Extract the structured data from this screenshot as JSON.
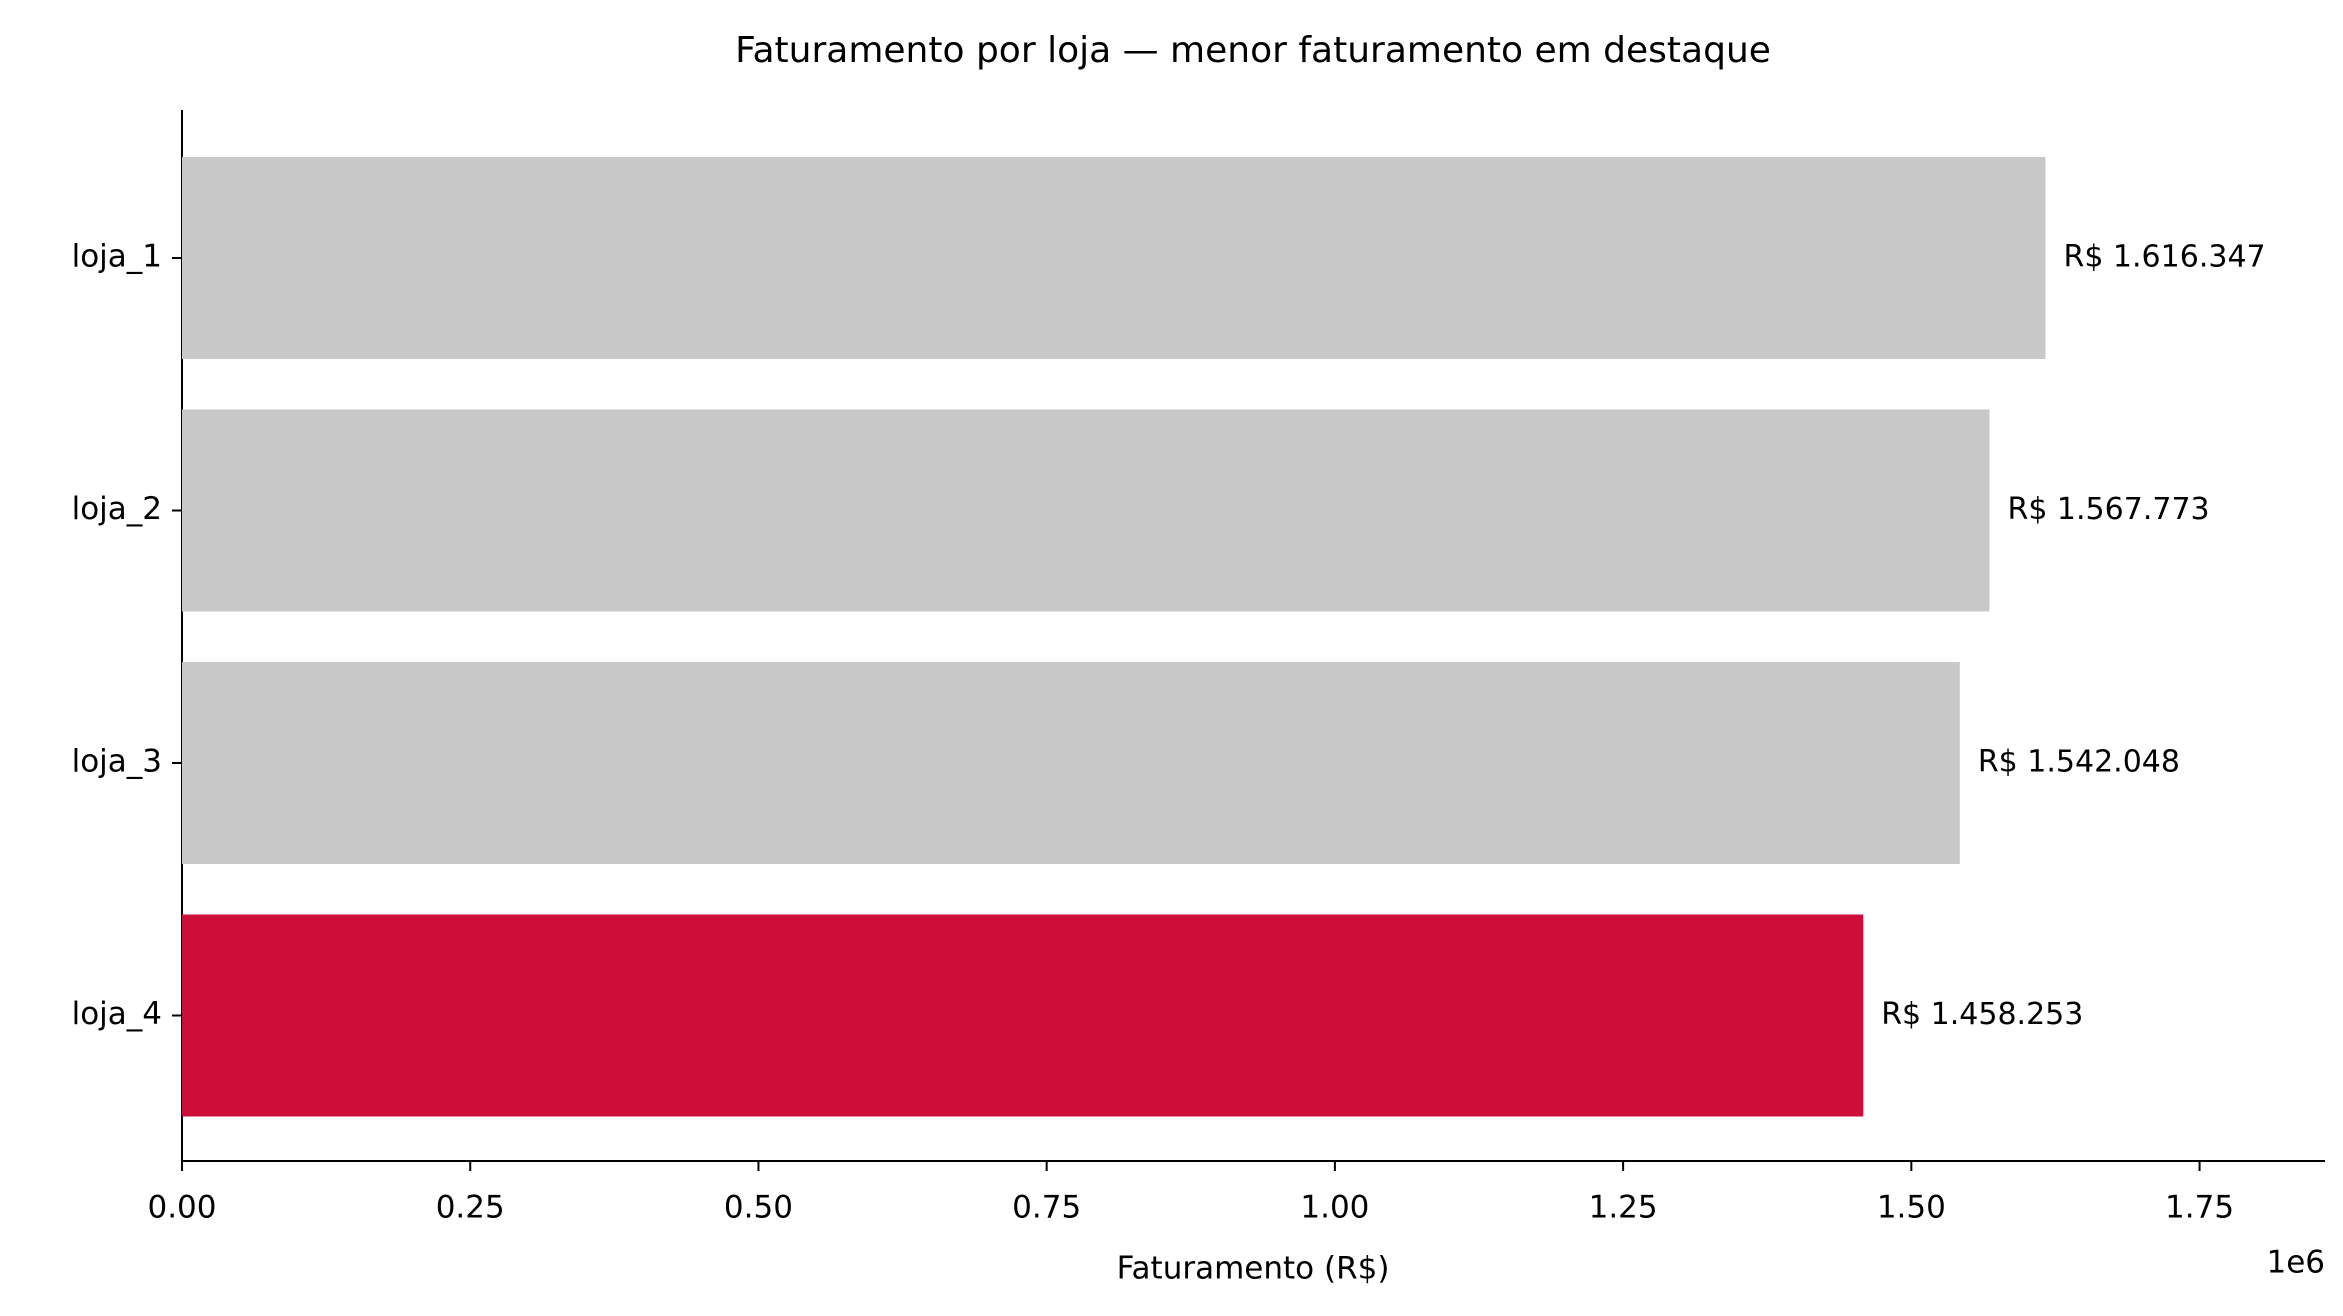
{
  "chart_data": {
    "type": "barh",
    "title": "Faturamento por loja — menor faturamento em destaque",
    "categories": [
      "loja_1",
      "loja_2",
      "loja_3",
      "loja_4"
    ],
    "values": [
      1616347,
      1567773,
      1542048,
      1458253
    ],
    "value_labels": [
      "R$ 1.616.347",
      "R$ 1.567.773",
      "R$ 1.542.048",
      "R$ 1.458.253"
    ],
    "colors": [
      "#c8c8c8",
      "#c8c8c8",
      "#c8c8c8",
      "#cc0e38"
    ],
    "xlabel": "Faturamento (R$)",
    "x_offset_label": "1e6",
    "xlim": [
      0,
      1858799
    ],
    "xticks": [
      {
        "value": 0,
        "label": "0.00"
      },
      {
        "value": 250000,
        "label": "0.25"
      },
      {
        "value": 500000,
        "label": "0.50"
      },
      {
        "value": 750000,
        "label": "0.75"
      },
      {
        "value": 1000000,
        "label": "1.00"
      },
      {
        "value": 1250000,
        "label": "1.25"
      },
      {
        "value": 1500000,
        "label": "1.50"
      },
      {
        "value": 1750000,
        "label": "1.75"
      }
    ],
    "grid": false
  }
}
